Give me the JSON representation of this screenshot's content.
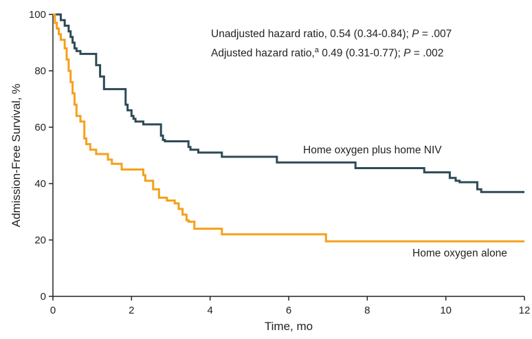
{
  "chart_data": {
    "type": "line",
    "step": true,
    "xlabel": "Time, mo",
    "ylabel": "Admission-Free Survival, %",
    "xlim": [
      0,
      12
    ],
    "ylim": [
      0,
      100
    ],
    "xticks": [
      0,
      2,
      4,
      6,
      8,
      10,
      12
    ],
    "yticks": [
      0,
      20,
      40,
      60,
      80,
      100
    ],
    "grid": false,
    "annotations": {
      "line1": {
        "prefix": "Unadjusted hazard ratio, 0.54 (0.34-0.84); ",
        "p": "P",
        "suffix": " = .007"
      },
      "line2": {
        "prefix": "Adjusted hazard ratio,",
        "sup": "a",
        "mid": " 0.49 (0.31-0.77); ",
        "p": "P",
        "suffix": " = .002"
      }
    },
    "series": [
      {
        "name": "Home oxygen plus home NIV",
        "color": "#2d4a55",
        "x": [
          0,
          0.2,
          0.3,
          0.4,
          0.45,
          0.5,
          0.55,
          0.6,
          0.7,
          0.8,
          1.1,
          1.2,
          1.3,
          1.85,
          1.9,
          2.0,
          2.05,
          2.1,
          2.3,
          2.5,
          2.75,
          2.8,
          2.85,
          3.45,
          3.5,
          3.6,
          3.7,
          4.3,
          5.7,
          7.7,
          9.45,
          10.1,
          10.25,
          10.35,
          10.8,
          10.9,
          12
        ],
        "y": [
          100,
          98,
          96,
          94,
          92,
          90,
          88,
          87,
          86,
          86,
          82,
          78,
          73.5,
          68,
          66,
          64,
          63,
          62,
          61,
          61,
          57,
          55.5,
          55,
          53,
          52,
          52,
          51,
          49.5,
          47.5,
          45.5,
          44,
          42,
          41,
          40.5,
          38,
          37,
          37
        ]
      },
      {
        "name": "Home oxygen alone",
        "color": "#f5a01a",
        "x": [
          0,
          0.05,
          0.1,
          0.15,
          0.2,
          0.3,
          0.35,
          0.4,
          0.45,
          0.5,
          0.55,
          0.6,
          0.7,
          0.8,
          0.85,
          0.95,
          1.1,
          1.4,
          1.5,
          1.75,
          2.3,
          2.35,
          2.55,
          2.7,
          2.9,
          3.1,
          3.2,
          3.3,
          3.4,
          3.45,
          3.6,
          4.3,
          6.95,
          12
        ],
        "y": [
          100,
          97,
          95,
          93,
          91,
          88,
          84,
          80,
          76,
          72,
          68,
          64,
          62,
          56,
          54,
          52,
          50.5,
          48.5,
          47,
          45,
          43,
          41,
          38,
          35,
          34,
          33,
          31,
          29,
          27,
          26.5,
          24,
          22,
          19.5,
          19.5
        ]
      }
    ],
    "series_labels": [
      "Home oxygen plus home NIV",
      "Home oxygen alone"
    ]
  }
}
